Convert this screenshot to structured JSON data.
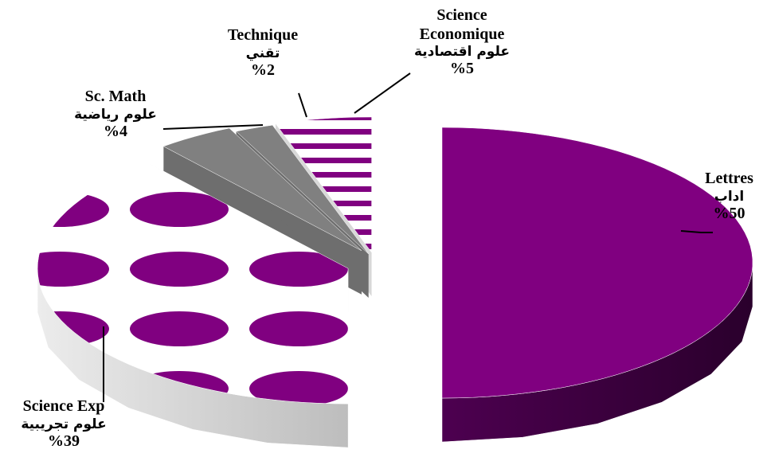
{
  "chart_data": {
    "type": "pie",
    "style": "exploded 3D pie with patterned fills",
    "slices": [
      {
        "label_en": "Lettres",
        "label_ar": "اداب",
        "pct": "%50",
        "value": 50,
        "color": "#800080",
        "fill": "solid"
      },
      {
        "label_en": "Science Exp",
        "label_ar": "علوم تجريبية",
        "pct": "%39",
        "value": 39,
        "color": "#800080",
        "fill": "dots"
      },
      {
        "label_en": "Sc. Math",
        "label_ar": "علوم رياضية",
        "pct": "%4",
        "value": 4,
        "color": "#808080",
        "fill": "solid"
      },
      {
        "label_en": "Technique",
        "label_ar": "تقني",
        "pct": "%2",
        "value": 2,
        "color": "#808080",
        "fill": "solid"
      },
      {
        "label_en": "Science Economique",
        "label_ar": "علوم اقتصادية",
        "pct": "%5",
        "value": 5,
        "color": "#800080",
        "fill": "stripes"
      }
    ]
  },
  "labels": {
    "lettres": {
      "en": "Lettres",
      "ar": "اداب",
      "pct": "%50"
    },
    "sciexp": {
      "en": "Science Exp",
      "ar": "علوم تجريبية",
      "pct": "%39"
    },
    "scmath": {
      "en": "Sc. Math",
      "ar": "علوم رياضية",
      "pct": "%4"
    },
    "technique": {
      "en": "Technique",
      "ar": "تقني",
      "pct": "%2"
    },
    "scieco": {
      "en1": "Science",
      "en2": "Economique",
      "ar": "علوم اقتصادية",
      "pct": "%5"
    }
  }
}
